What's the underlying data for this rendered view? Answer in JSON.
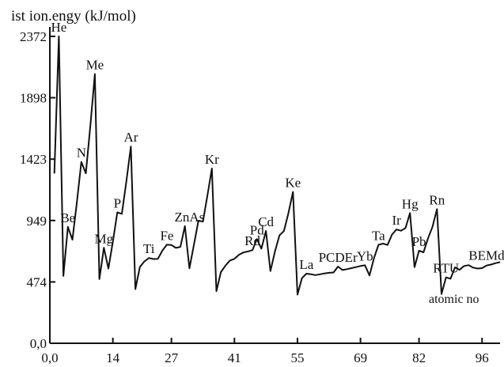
{
  "chart_data": {
    "type": "line",
    "title": "",
    "ylabel": "ist ion.engy (kJ/mol)",
    "xlabel": "atomic no",
    "xlim": [
      0,
      100
    ],
    "ylim": [
      0,
      2372
    ],
    "grid": false,
    "x_ticks": [
      0,
      14,
      27,
      41,
      55,
      69,
      82,
      96
    ],
    "x_tick_labels": [
      "0,0",
      "14",
      "27",
      "41",
      "55",
      "69",
      "82",
      "96"
    ],
    "y_ticks": [
      0,
      474,
      949,
      1423,
      1898,
      2372
    ],
    "y_tick_labels": [
      "0,0",
      "474",
      "949",
      "1423",
      "1898",
      "2372"
    ],
    "series": [
      {
        "x": [
          1,
          2,
          3,
          4,
          5,
          6,
          7,
          8,
          9,
          10,
          11,
          12,
          13,
          14,
          15,
          16,
          17,
          18,
          19,
          20,
          21,
          22,
          23,
          24,
          25,
          26,
          27,
          28,
          29,
          30,
          31,
          32,
          33,
          34,
          35,
          36,
          37,
          38,
          39,
          40,
          41,
          42,
          43,
          44,
          45,
          46,
          47,
          48,
          49,
          50,
          51,
          52,
          53,
          54,
          55,
          56,
          57,
          58,
          59,
          60,
          61,
          62,
          63,
          64,
          65,
          66,
          67,
          68,
          69,
          70,
          71,
          72,
          73,
          74,
          75,
          76,
          77,
          78,
          79,
          80,
          81,
          82,
          83,
          84,
          85,
          86,
          87,
          88,
          89,
          90,
          91,
          92,
          93,
          94,
          95,
          96,
          97,
          98,
          99,
          100
        ],
        "values": [
          1312,
          2372,
          520,
          900,
          800,
          1086,
          1402,
          1314,
          1681,
          2081,
          496,
          738,
          578,
          787,
          1012,
          1000,
          1251,
          1521,
          419,
          590,
          633,
          659,
          651,
          653,
          717,
          762,
          760,
          737,
          745,
          906,
          579,
          762,
          947,
          941,
          1140,
          1351,
          403,
          550,
          600,
          640,
          652,
          684,
          702,
          710,
          720,
          805,
          731,
          868,
          558,
          709,
          834,
          869,
          1008,
          1170,
          376,
          503,
          538,
          534,
          527,
          533,
          540,
          545,
          547,
          593,
          566,
          573,
          581,
          589,
          597,
          603,
          524,
          659,
          761,
          770,
          760,
          840,
          880,
          870,
          890,
          1007,
          589,
          716,
          703,
          812,
          900,
          1037,
          380,
          509,
          499,
          587,
          568,
          597,
          604,
          585,
          578,
          581,
          601,
          608,
          619,
          627
        ]
      }
    ],
    "annotations": [
      {
        "label": "He",
        "x": 2,
        "y": 2372
      },
      {
        "label": "Me",
        "x": 10,
        "y": 2081
      },
      {
        "label": "N",
        "x": 7,
        "y": 1402
      },
      {
        "label": "Ar",
        "x": 18,
        "y": 1521
      },
      {
        "label": "P",
        "x": 15,
        "y": 1012
      },
      {
        "label": "Be",
        "x": 4,
        "y": 900
      },
      {
        "label": "Mg",
        "x": 12,
        "y": 738
      },
      {
        "label": "Kr",
        "x": 36,
        "y": 1351
      },
      {
        "label": "ZnAs",
        "x": 31,
        "y": 906
      },
      {
        "label": "Fe",
        "x": 26,
        "y": 762
      },
      {
        "label": "Ti",
        "x": 22,
        "y": 659
      },
      {
        "label": "Ke",
        "x": 54,
        "y": 1170
      },
      {
        "label": "Cd",
        "x": 48,
        "y": 868
      },
      {
        "label": "Pd",
        "x": 46,
        "y": 805
      },
      {
        "label": "Rd",
        "x": 45,
        "y": 720
      },
      {
        "label": "La",
        "x": 57,
        "y": 538
      },
      {
        "label": "PCDEr",
        "x": 64,
        "y": 593
      },
      {
        "label": "Yb",
        "x": 70,
        "y": 603
      },
      {
        "label": "Ta",
        "x": 73,
        "y": 761
      },
      {
        "label": "Ir",
        "x": 77,
        "y": 880
      },
      {
        "label": "Hg",
        "x": 80,
        "y": 1007
      },
      {
        "label": "Rn",
        "x": 86,
        "y": 1037
      },
      {
        "label": "Pb",
        "x": 82,
        "y": 716
      },
      {
        "label": "RTU",
        "x": 88,
        "y": 509
      },
      {
        "label": "BEMd",
        "x": 97,
        "y": 608
      }
    ]
  },
  "colors": {
    "line": "#111111",
    "axis": "#111111",
    "background": "#ffffff"
  }
}
